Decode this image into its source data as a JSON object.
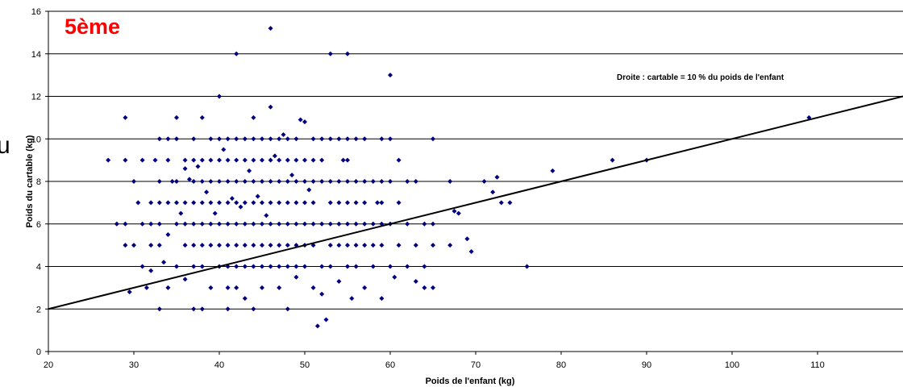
{
  "edge_glyph": "u",
  "chart_data": {
    "type": "scatter",
    "title": "5ème",
    "title_color": "#ff0000",
    "xlabel": "Poids de l'enfant (kg)",
    "ylabel": "Poids du cartable (kg)",
    "xlim": [
      20,
      120
    ],
    "ylim": [
      0,
      16
    ],
    "xticks": [
      20,
      30,
      40,
      50,
      60,
      70,
      80,
      90,
      100,
      110
    ],
    "yticks": [
      0,
      2,
      4,
      6,
      8,
      10,
      12,
      14,
      16
    ],
    "grid": "horizontal",
    "marker": "diamond",
    "marker_color": "#000080",
    "annotation": "Droite : cartable = 10 % du poids de l'enfant",
    "reference_line": {
      "slope": 0.1,
      "intercept": 0,
      "x_range": [
        20,
        120
      ],
      "color": "#000000"
    },
    "points": [
      [
        27,
        9
      ],
      [
        28,
        6
      ],
      [
        29,
        11
      ],
      [
        29,
        9
      ],
      [
        29,
        6
      ],
      [
        29,
        5
      ],
      [
        29.5,
        2.8
      ],
      [
        30,
        8
      ],
      [
        30,
        5
      ],
      [
        30.5,
        7
      ],
      [
        31,
        9
      ],
      [
        31,
        6
      ],
      [
        31,
        4
      ],
      [
        31.5,
        3
      ],
      [
        32,
        7
      ],
      [
        32,
        6
      ],
      [
        32,
        5
      ],
      [
        32,
        3.8
      ],
      [
        32.5,
        9
      ],
      [
        33,
        10
      ],
      [
        33,
        8
      ],
      [
        33,
        7
      ],
      [
        33,
        6
      ],
      [
        33,
        5
      ],
      [
        33,
        2
      ],
      [
        33.5,
        4.2
      ],
      [
        34,
        10
      ],
      [
        34,
        9
      ],
      [
        34,
        7
      ],
      [
        34,
        5.5
      ],
      [
        34,
        3
      ],
      [
        34.5,
        8
      ],
      [
        35,
        11
      ],
      [
        35,
        10
      ],
      [
        35,
        8
      ],
      [
        35,
        7
      ],
      [
        35,
        6
      ],
      [
        35,
        4
      ],
      [
        35.5,
        6.5
      ],
      [
        36,
        9
      ],
      [
        36,
        8.6
      ],
      [
        36,
        7
      ],
      [
        36,
        6
      ],
      [
        36,
        5
      ],
      [
        36,
        3.4
      ],
      [
        36.5,
        8.1
      ],
      [
        37,
        10
      ],
      [
        37,
        9
      ],
      [
        37,
        8
      ],
      [
        37,
        7
      ],
      [
        37,
        6
      ],
      [
        37,
        5
      ],
      [
        37,
        4
      ],
      [
        37,
        2
      ],
      [
        37.5,
        8.7
      ],
      [
        38,
        11
      ],
      [
        38,
        9
      ],
      [
        38,
        8
      ],
      [
        38,
        7
      ],
      [
        38,
        6
      ],
      [
        38,
        5
      ],
      [
        38,
        4
      ],
      [
        38,
        2
      ],
      [
        38.5,
        7.5
      ],
      [
        39,
        10
      ],
      [
        39,
        9
      ],
      [
        39,
        8
      ],
      [
        39,
        7
      ],
      [
        39,
        6
      ],
      [
        39,
        5
      ],
      [
        39,
        3
      ],
      [
        39.5,
        6.5
      ],
      [
        40,
        12
      ],
      [
        40,
        10
      ],
      [
        40,
        9
      ],
      [
        40,
        8
      ],
      [
        40,
        7
      ],
      [
        40,
        6
      ],
      [
        40,
        5
      ],
      [
        40,
        4
      ],
      [
        40.5,
        9.5
      ],
      [
        41,
        10
      ],
      [
        41,
        9
      ],
      [
        41,
        8
      ],
      [
        41,
        7
      ],
      [
        41,
        6
      ],
      [
        41,
        5
      ],
      [
        41,
        4
      ],
      [
        41,
        3
      ],
      [
        41,
        2
      ],
      [
        41.5,
        7.2
      ],
      [
        42,
        14
      ],
      [
        42,
        10
      ],
      [
        42,
        9
      ],
      [
        42,
        8
      ],
      [
        42,
        7
      ],
      [
        42,
        6
      ],
      [
        42,
        5
      ],
      [
        42,
        4
      ],
      [
        42,
        3
      ],
      [
        42.5,
        6.8
      ],
      [
        43,
        10
      ],
      [
        43,
        9
      ],
      [
        43,
        8
      ],
      [
        43,
        7
      ],
      [
        43,
        6
      ],
      [
        43,
        5
      ],
      [
        43,
        4
      ],
      [
        43,
        2.5
      ],
      [
        43.5,
        8.5
      ],
      [
        44,
        11
      ],
      [
        44,
        10
      ],
      [
        44,
        9
      ],
      [
        44,
        8
      ],
      [
        44,
        7
      ],
      [
        44,
        6
      ],
      [
        44,
        5
      ],
      [
        44,
        4
      ],
      [
        44,
        2
      ],
      [
        44.5,
        7.3
      ],
      [
        45,
        10
      ],
      [
        45,
        9
      ],
      [
        45,
        8
      ],
      [
        45,
        7
      ],
      [
        45,
        6
      ],
      [
        45,
        5
      ],
      [
        45,
        4
      ],
      [
        45,
        3
      ],
      [
        45.5,
        6.4
      ],
      [
        46,
        15.2
      ],
      [
        46,
        11.5
      ],
      [
        46,
        10
      ],
      [
        46,
        9
      ],
      [
        46,
        8
      ],
      [
        46,
        7
      ],
      [
        46,
        6
      ],
      [
        46,
        5
      ],
      [
        46,
        4
      ],
      [
        46.5,
        9.2
      ],
      [
        47,
        10
      ],
      [
        47,
        9
      ],
      [
        47,
        8
      ],
      [
        47,
        7
      ],
      [
        47,
        6
      ],
      [
        47,
        5
      ],
      [
        47,
        4
      ],
      [
        47,
        3
      ],
      [
        47.5,
        10.2
      ],
      [
        48,
        10
      ],
      [
        48,
        9
      ],
      [
        48,
        8
      ],
      [
        48,
        7
      ],
      [
        48,
        6
      ],
      [
        48,
        5
      ],
      [
        48,
        4
      ],
      [
        48,
        2
      ],
      [
        48.5,
        8.3
      ],
      [
        49,
        10
      ],
      [
        49,
        9
      ],
      [
        49,
        8
      ],
      [
        49,
        7
      ],
      [
        49,
        6
      ],
      [
        49,
        5
      ],
      [
        49,
        4
      ],
      [
        49,
        3.5
      ],
      [
        49.5,
        10.9
      ],
      [
        50,
        10.8
      ],
      [
        50,
        9
      ],
      [
        50,
        8
      ],
      [
        50,
        7
      ],
      [
        50,
        6
      ],
      [
        50,
        5
      ],
      [
        50,
        4
      ],
      [
        50.5,
        7.6
      ],
      [
        51,
        10
      ],
      [
        51,
        9
      ],
      [
        51,
        8
      ],
      [
        51,
        7
      ],
      [
        51,
        6
      ],
      [
        51,
        5
      ],
      [
        51,
        3
      ],
      [
        51.5,
        1.2
      ],
      [
        52,
        10
      ],
      [
        52,
        9
      ],
      [
        52,
        8
      ],
      [
        52,
        6
      ],
      [
        52,
        4
      ],
      [
        52,
        2.7
      ],
      [
        52.5,
        1.5
      ],
      [
        53,
        14
      ],
      [
        53,
        10
      ],
      [
        53,
        8
      ],
      [
        53,
        7
      ],
      [
        53,
        6
      ],
      [
        53,
        5
      ],
      [
        53,
        4
      ],
      [
        54,
        10
      ],
      [
        54,
        8
      ],
      [
        54,
        7
      ],
      [
        54,
        6
      ],
      [
        54,
        5
      ],
      [
        54,
        3.3
      ],
      [
        54.5,
        9
      ],
      [
        55,
        14
      ],
      [
        55,
        10
      ],
      [
        55,
        9
      ],
      [
        55,
        8
      ],
      [
        55,
        7
      ],
      [
        55,
        6
      ],
      [
        55,
        5
      ],
      [
        55,
        4
      ],
      [
        55.5,
        2.5
      ],
      [
        56,
        10
      ],
      [
        56,
        8
      ],
      [
        56,
        7
      ],
      [
        56,
        6
      ],
      [
        56,
        5
      ],
      [
        56,
        4
      ],
      [
        57,
        10
      ],
      [
        57,
        8
      ],
      [
        57,
        7
      ],
      [
        57,
        6
      ],
      [
        57,
        5
      ],
      [
        57,
        3
      ],
      [
        58,
        8
      ],
      [
        58,
        6
      ],
      [
        58,
        5
      ],
      [
        58,
        4
      ],
      [
        58.5,
        7
      ],
      [
        59,
        10
      ],
      [
        59,
        8
      ],
      [
        59,
        7
      ],
      [
        59,
        6
      ],
      [
        59,
        5
      ],
      [
        59,
        2.5
      ],
      [
        60,
        13
      ],
      [
        60,
        10
      ],
      [
        60,
        8
      ],
      [
        60,
        6
      ],
      [
        60,
        4
      ],
      [
        60.5,
        3.5
      ],
      [
        61,
        9
      ],
      [
        61,
        7
      ],
      [
        61,
        5
      ],
      [
        62,
        8
      ],
      [
        62,
        6
      ],
      [
        62,
        4
      ],
      [
        63,
        8
      ],
      [
        63,
        5
      ],
      [
        63,
        3.3
      ],
      [
        64,
        6
      ],
      [
        64,
        4
      ],
      [
        64,
        3
      ],
      [
        65,
        10
      ],
      [
        65,
        6
      ],
      [
        65,
        5
      ],
      [
        65,
        3
      ],
      [
        67,
        8
      ],
      [
        67,
        5
      ],
      [
        67.5,
        6.6
      ],
      [
        68,
        6.5
      ],
      [
        69,
        5.3
      ],
      [
        69.5,
        4.7
      ],
      [
        71,
        8
      ],
      [
        72,
        7.5
      ],
      [
        72.5,
        8.2
      ],
      [
        73,
        7
      ],
      [
        74,
        7
      ],
      [
        76,
        4
      ],
      [
        79,
        8.5
      ],
      [
        86,
        9
      ],
      [
        90,
        9
      ],
      [
        109,
        11
      ]
    ]
  }
}
